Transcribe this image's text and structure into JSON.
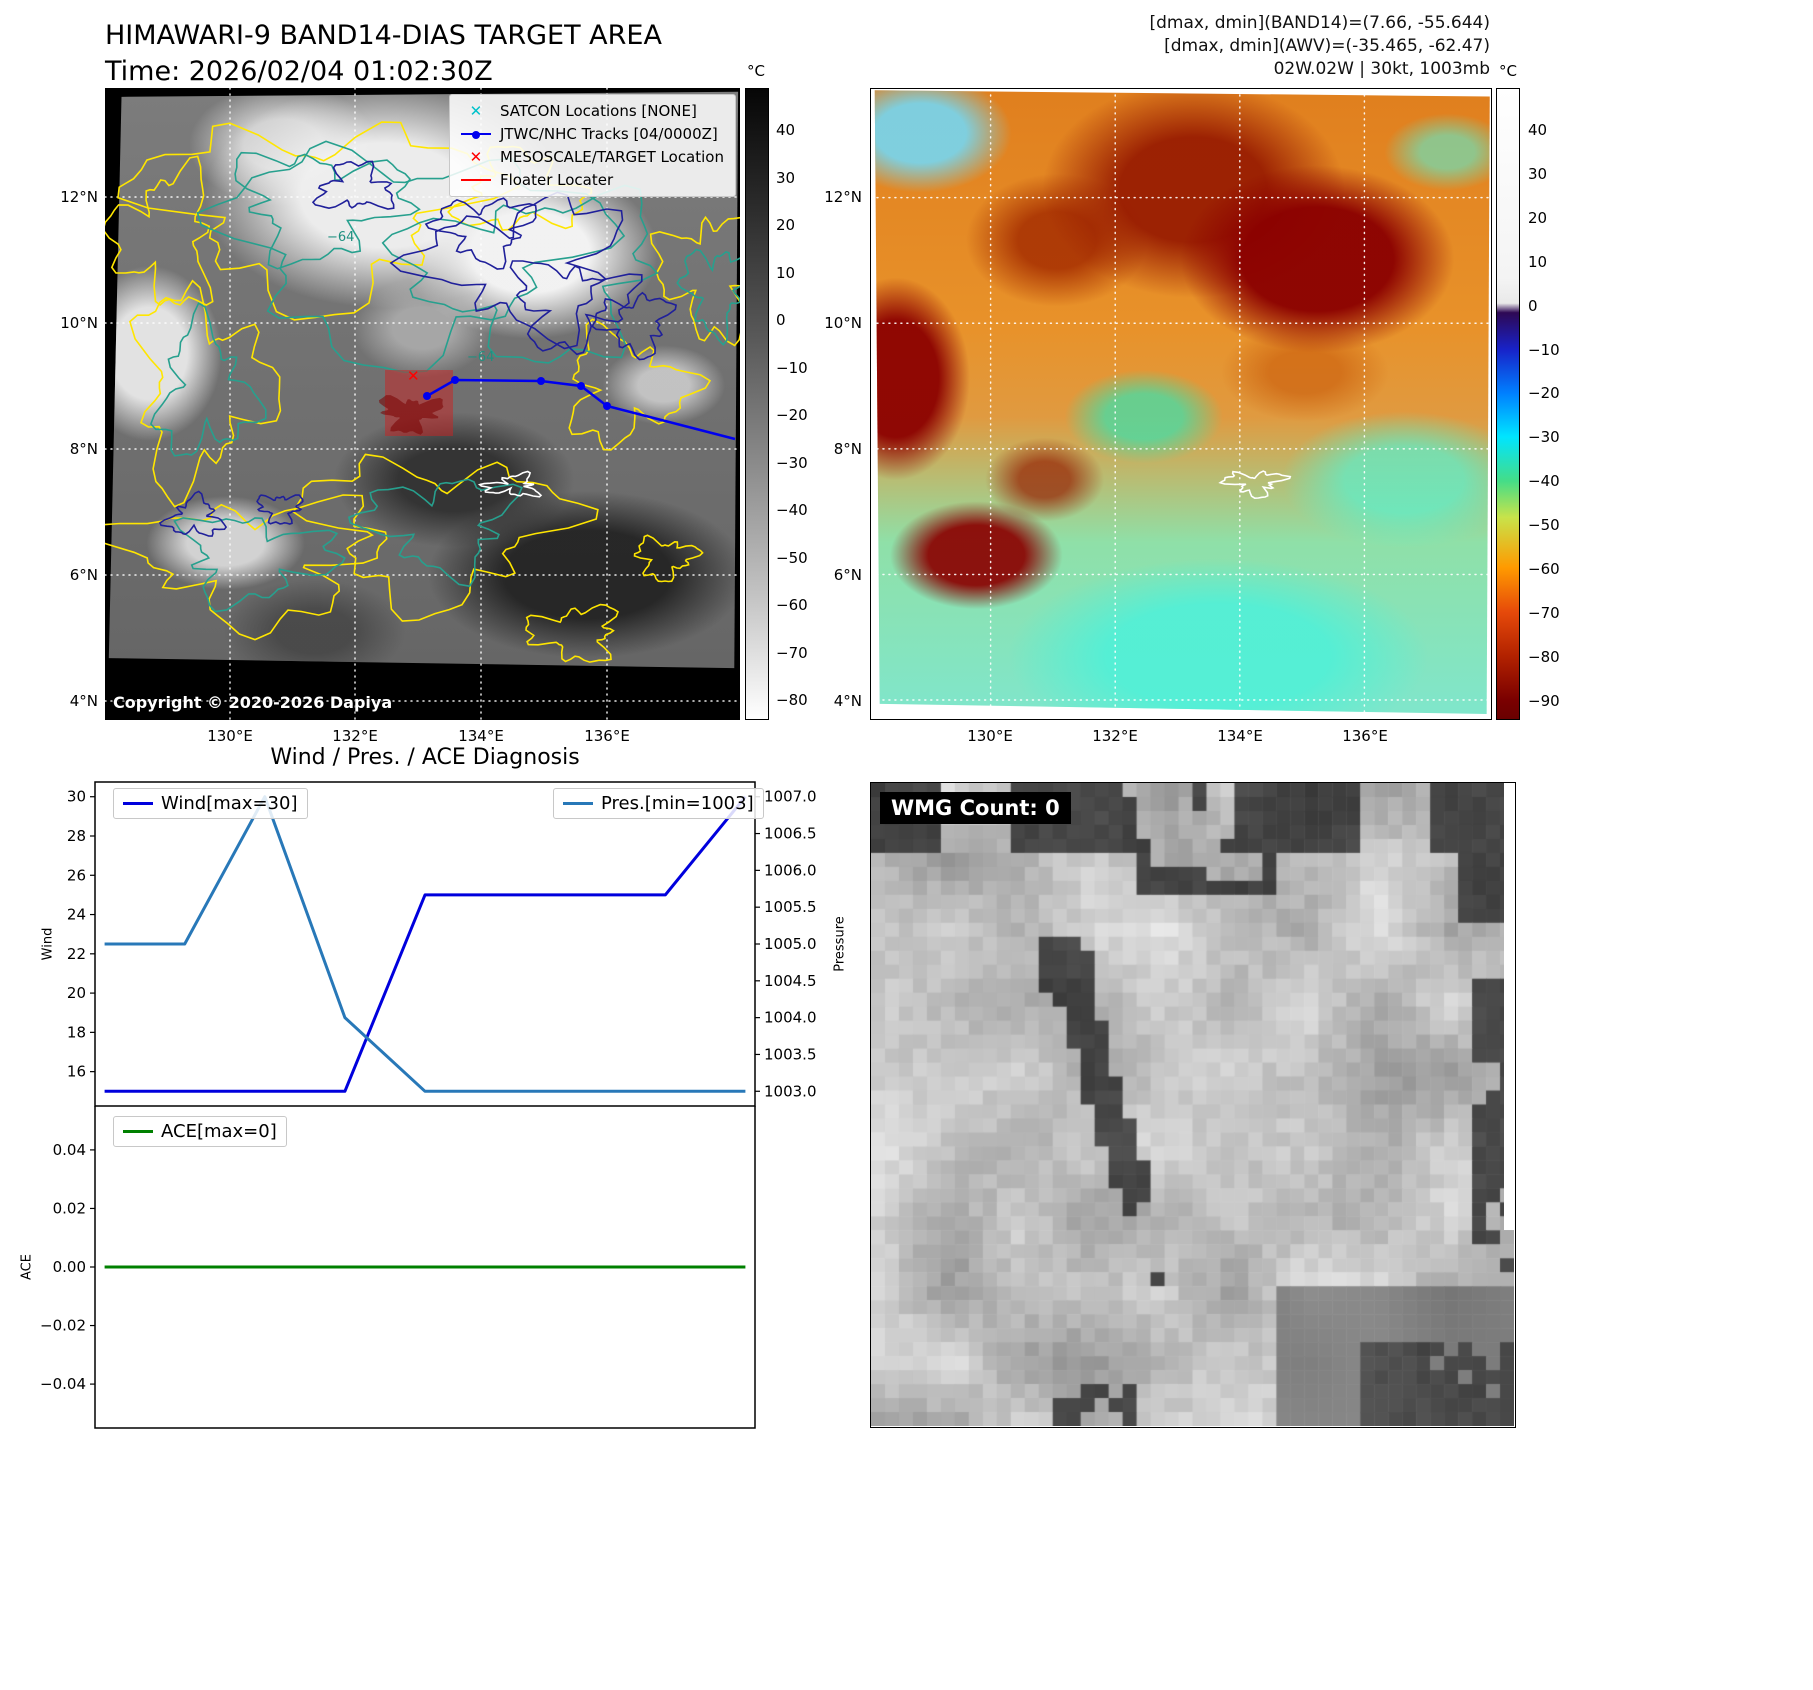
{
  "panel_band14": {
    "title": "HIMAWARI-9 BAND14-DIAS TARGET AREA",
    "time": "Time: 2026/02/04 01:02:30Z",
    "copyright": "Copyright © 2020-2026 Dapiya",
    "contour_label": "−64",
    "colorbar": {
      "unit": "°C",
      "ticks": [
        "40",
        "30",
        "20",
        "10",
        "0",
        "−10",
        "−20",
        "−30",
        "−40",
        "−50",
        "−60",
        "−70",
        "−80"
      ]
    },
    "legend": [
      {
        "label": "SATCON Locations [NONE]",
        "marker": "x",
        "color": "#00c2cb"
      },
      {
        "label": "JTWC/NHC Tracks [04/0000Z]",
        "marker": "line-dot",
        "color": "#0000ee"
      },
      {
        "label": "MESOSCALE/TARGET Location",
        "marker": "x",
        "color": "#ff0000"
      },
      {
        "label": "Floater Locater",
        "marker": "line",
        "color": "#ff0000"
      }
    ]
  },
  "panel_awv": {
    "header_lines": [
      "[dmax, dmin](BAND14)=(7.66, -55.644)",
      "[dmax, dmin](AWV)=(-35.465, -62.47)",
      "02W.02W | 30kt, 1003mb"
    ],
    "colorbar": {
      "unit": "°C",
      "ticks": [
        "40",
        "30",
        "20",
        "10",
        "0",
        "−10",
        "−20",
        "−30",
        "−40",
        "−50",
        "−60",
        "−70",
        "−80",
        "−90"
      ]
    }
  },
  "geo": {
    "lat_ticks": [
      "12°N",
      "10°N",
      "8°N",
      "6°N",
      "4°N"
    ],
    "lon_ticks": [
      "130°E",
      "132°E",
      "134°E",
      "136°E"
    ]
  },
  "diagnosis_title": "Wind / Pres. / ACE Diagnosis",
  "wmg": {
    "label": "WMG Count: 0"
  },
  "chart_data": [
    {
      "type": "line",
      "title": "Wind / Pres. / ACE Diagnosis",
      "x": [
        0,
        1,
        2,
        3,
        4,
        5,
        6,
        7,
        8
      ],
      "xlim": [
        -0.12,
        8.12
      ],
      "series": [
        {
          "name": "Wind[max=30]",
          "axis": "left",
          "color": "#0000dd",
          "values": [
            15,
            15,
            15,
            15,
            25,
            25,
            25,
            25,
            30
          ]
        },
        {
          "name": "Pres.[min=1003]",
          "axis": "right",
          "color": "#2878b8",
          "values": [
            1005,
            1005,
            1007,
            1004,
            1003,
            1003,
            1003,
            1003,
            1003
          ]
        }
      ],
      "left_axis": {
        "label": "Wind",
        "ticks": [
          30,
          28,
          26,
          24,
          22,
          20,
          18,
          16
        ],
        "range": [
          14.25,
          30.75
        ],
        "decimals": 0
      },
      "right_axis": {
        "label": "Pressure",
        "ticks": [
          1007.0,
          1006.5,
          1006.0,
          1005.5,
          1005.0,
          1004.5,
          1004.0,
          1003.5,
          1003.0
        ],
        "range": [
          1002.8,
          1007.2
        ],
        "decimals": 1
      }
    },
    {
      "type": "line",
      "x": [
        0,
        8
      ],
      "xlim": [
        -0.12,
        8.12
      ],
      "series": [
        {
          "name": "ACE[max=0]",
          "axis": "left",
          "color": "#008000",
          "values": [
            0,
            0
          ]
        }
      ],
      "left_axis": {
        "label": "ACE",
        "ticks": [
          0.04,
          0.02,
          0,
          -0.02,
          -0.04
        ],
        "range": [
          -0.055,
          0.055
        ],
        "decimals": 2
      }
    }
  ]
}
